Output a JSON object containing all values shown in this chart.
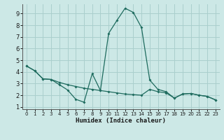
{
  "xlabel": "Humidex (Indice chaleur)",
  "background_color": "#cce8e6",
  "grid_color": "#aacfcd",
  "line_color": "#1e6b5e",
  "xlim": [
    -0.5,
    23.5
  ],
  "ylim": [
    0.8,
    9.8
  ],
  "xticks": [
    0,
    1,
    2,
    3,
    4,
    5,
    6,
    7,
    8,
    9,
    10,
    11,
    12,
    13,
    14,
    15,
    16,
    17,
    18,
    19,
    20,
    21,
    22,
    23
  ],
  "yticks": [
    1,
    2,
    3,
    4,
    5,
    6,
    7,
    8,
    9
  ],
  "curve1_x": [
    0,
    1,
    2,
    3,
    4,
    5,
    6,
    7,
    8,
    9,
    10,
    11,
    12,
    13,
    14,
    15,
    16,
    17,
    18,
    19,
    20,
    21,
    22,
    23
  ],
  "curve1_y": [
    4.5,
    4.1,
    3.4,
    3.35,
    2.9,
    2.45,
    1.65,
    1.4,
    3.85,
    2.4,
    7.3,
    8.4,
    9.45,
    9.1,
    7.8,
    3.3,
    2.5,
    2.3,
    1.75,
    2.1,
    2.15,
    2.0,
    1.9,
    1.6
  ],
  "curve2_x": [
    0,
    1,
    2,
    3,
    4,
    5,
    6,
    7,
    8,
    9,
    10,
    11,
    12,
    13,
    14,
    15,
    16,
    17,
    18,
    19,
    20,
    21,
    22,
    23
  ],
  "curve2_y": [
    4.5,
    4.1,
    3.4,
    3.35,
    3.1,
    2.9,
    2.75,
    2.6,
    2.5,
    2.4,
    2.3,
    2.2,
    2.1,
    2.05,
    2.0,
    2.5,
    2.3,
    2.2,
    1.75,
    2.1,
    2.15,
    2.0,
    1.9,
    1.6
  ]
}
